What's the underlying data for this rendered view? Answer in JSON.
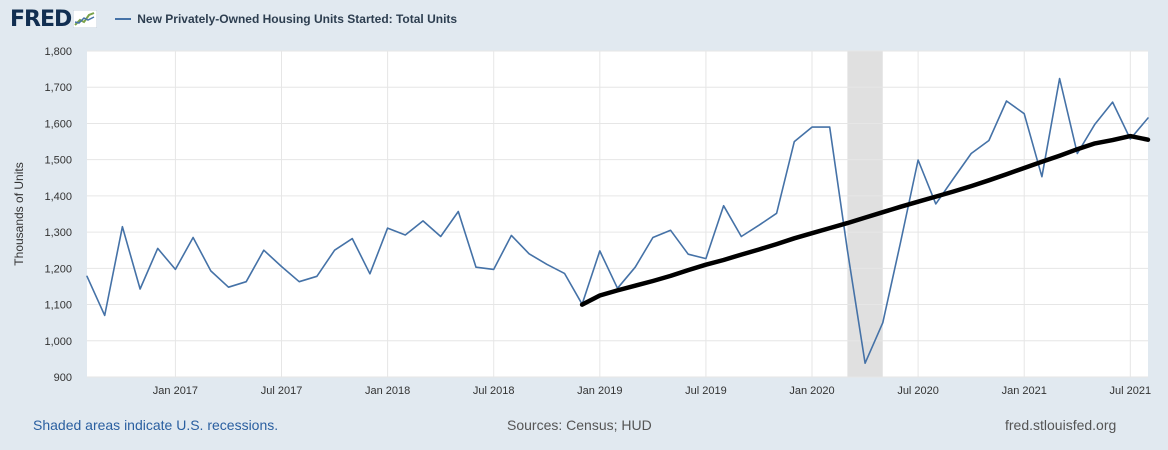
{
  "header": {
    "logo": "FRED",
    "legend_label": "New Privately-Owned Housing Units Started: Total Units"
  },
  "footer": {
    "recession_note": "Shaded areas indicate U.S. recessions.",
    "sources": "Sources: Census; HUD",
    "site": "fred.stlouisfed.org"
  },
  "colors": {
    "series_line": "#4572a7",
    "trend_line": "#000000",
    "plot_background": "#ffffff",
    "page_background": "#e1e9f0",
    "recession_shade": "#e0e0e0",
    "gridline": "#e6e6e6"
  },
  "chart_data": {
    "type": "line",
    "title": "",
    "xlabel": "",
    "ylabel": "Thousands of Units",
    "ylim": [
      900,
      1800
    ],
    "xlim": [
      "2016-08",
      "2021-08"
    ],
    "yticks": [
      "900",
      "1,000",
      "1,100",
      "1,200",
      "1,300",
      "1,400",
      "1,500",
      "1,600",
      "1,700",
      "1,800"
    ],
    "xticks": [
      "Jan 2017",
      "Jul 2017",
      "Jan 2018",
      "Jul 2018",
      "Jan 2019",
      "Jul 2019",
      "Jan 2020",
      "Jul 2020",
      "Jan 2021",
      "Jul 2021"
    ],
    "grid": true,
    "legend_position": "top",
    "recession_periods": [
      [
        "2020-03",
        "2020-04"
      ]
    ],
    "x": [
      "2016-08",
      "2016-09",
      "2016-10",
      "2016-11",
      "2016-12",
      "2017-01",
      "2017-02",
      "2017-03",
      "2017-04",
      "2017-05",
      "2017-06",
      "2017-07",
      "2017-08",
      "2017-09",
      "2017-10",
      "2017-11",
      "2017-12",
      "2018-01",
      "2018-02",
      "2018-03",
      "2018-04",
      "2018-05",
      "2018-06",
      "2018-07",
      "2018-08",
      "2018-09",
      "2018-10",
      "2018-11",
      "2018-12",
      "2019-01",
      "2019-02",
      "2019-03",
      "2019-04",
      "2019-05",
      "2019-06",
      "2019-07",
      "2019-08",
      "2019-09",
      "2019-10",
      "2019-11",
      "2019-12",
      "2020-01",
      "2020-02",
      "2020-03",
      "2020-04",
      "2020-05",
      "2020-06",
      "2020-07",
      "2020-08",
      "2020-09",
      "2020-10",
      "2020-11",
      "2020-12",
      "2021-01",
      "2021-02",
      "2021-03",
      "2021-04",
      "2021-05",
      "2021-06",
      "2021-07",
      "2021-08"
    ],
    "series": [
      {
        "name": "New Privately-Owned Housing Units Started: Total Units",
        "values": [
          1178,
          1070,
          1315,
          1143,
          1255,
          1197,
          1285,
          1193,
          1148,
          1163,
          1250,
          1205,
          1163,
          1178,
          1250,
          1282,
          1185,
          1311,
          1292,
          1331,
          1288,
          1357,
          1203,
          1197,
          1291,
          1240,
          1211,
          1186,
          1101,
          1248,
          1145,
          1203,
          1285,
          1305,
          1239,
          1227,
          1373,
          1288,
          1319,
          1352,
          1550,
          1590,
          1590,
          1250,
          938,
          1050,
          1270,
          1499,
          1378,
          1448,
          1517,
          1553,
          1662,
          1627,
          1453,
          1724,
          1517,
          1598,
          1659,
          1557,
          1615
        ]
      },
      {
        "name": "",
        "values": [
          null,
          null,
          null,
          null,
          null,
          null,
          null,
          null,
          null,
          null,
          null,
          null,
          null,
          null,
          null,
          null,
          null,
          null,
          null,
          null,
          null,
          null,
          null,
          null,
          null,
          null,
          null,
          null,
          1100,
          1125,
          1139,
          1152,
          1165,
          1179,
          1195,
          1210,
          1223,
          1238,
          1252,
          1267,
          1283,
          1297,
          1311,
          1325,
          1340,
          1355,
          1370,
          1384,
          1398,
          1412,
          1427,
          1443,
          1460,
          1477,
          1494,
          1511,
          1529,
          1545,
          1554,
          1565,
          1555
        ]
      }
    ]
  }
}
